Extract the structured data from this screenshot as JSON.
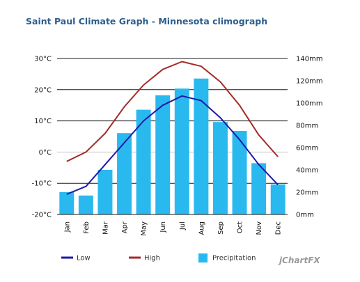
{
  "chart_data": {
    "type": "bar",
    "title": "Saint Paul Climate Graph - Minnesota climograph",
    "categories": [
      "Jan",
      "Feb",
      "Mar",
      "Apr",
      "May",
      "Jun",
      "Jul",
      "Aug",
      "Sep",
      "Oct",
      "Nov",
      "Dec"
    ],
    "left_axis": {
      "ylim": [
        -20,
        30
      ],
      "ticks": [
        -20,
        -10,
        0,
        10,
        20,
        30
      ],
      "tick_labels": [
        "-20°C",
        "-10°C",
        "0°C",
        "10°C",
        "20°C",
        "30°C"
      ]
    },
    "right_axis": {
      "ylim": [
        0,
        140
      ],
      "ticks": [
        0,
        20,
        40,
        60,
        80,
        100,
        120,
        140
      ],
      "tick_labels": [
        "0mm",
        "20mm",
        "40mm",
        "60mm",
        "80mm",
        "100mm",
        "120mm",
        "140mm"
      ]
    },
    "grid": true,
    "legend_position": "bottom",
    "series": [
      {
        "name": "Low",
        "type": "line",
        "axis": "left",
        "color": "#1a1aaa",
        "values": [
          -13.5,
          -11,
          -4,
          3,
          10,
          15,
          18,
          16.5,
          11,
          4,
          -4,
          -10.5
        ]
      },
      {
        "name": "High",
        "type": "line",
        "axis": "left",
        "color": "#a52a2a",
        "values": [
          -3,
          0,
          6,
          14.5,
          21.5,
          26.5,
          29,
          27.5,
          22.5,
          15,
          5.5,
          -1.5
        ]
      },
      {
        "name": "Precipitation",
        "type": "bar",
        "axis": "right",
        "color": "#29b9ef",
        "values": [
          20,
          17,
          40,
          73,
          94,
          107,
          113,
          122,
          83,
          75,
          46,
          27
        ]
      }
    ],
    "brand": "jChartFX"
  }
}
